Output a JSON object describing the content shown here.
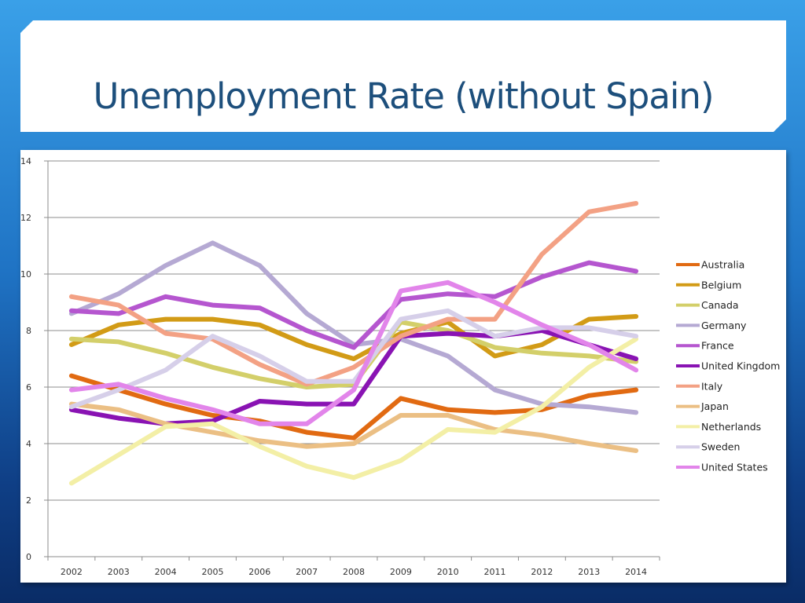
{
  "slide": {
    "title": "Unemployment Rate (without Spain)"
  },
  "chart_data": {
    "type": "line",
    "title": "Unemployment Rate (without Spain)",
    "xlabel": "",
    "ylabel": "",
    "x": [
      "2002",
      "2003",
      "2004",
      "2005",
      "2006",
      "2007",
      "2008",
      "2009",
      "2010",
      "2011",
      "2012",
      "2013",
      "2014"
    ],
    "ylim": [
      0,
      14
    ],
    "yticks": [
      0,
      2,
      4,
      6,
      8,
      10,
      12,
      14
    ],
    "grid": true,
    "legend_position": "right",
    "series": [
      {
        "name": "Australia",
        "color": "#e16a12",
        "values": [
          6.4,
          5.9,
          5.4,
          5.0,
          4.8,
          4.4,
          4.2,
          5.6,
          5.2,
          5.1,
          5.2,
          5.7,
          5.9
        ]
      },
      {
        "name": "Belgium",
        "color": "#d29b16",
        "values": [
          7.5,
          8.2,
          8.4,
          8.4,
          8.2,
          7.5,
          7.0,
          7.9,
          8.3,
          7.1,
          7.5,
          8.4,
          8.5
        ]
      },
      {
        "name": "Canada",
        "color": "#d3cf6a",
        "values": [
          7.7,
          7.6,
          7.2,
          6.7,
          6.3,
          6.0,
          6.1,
          8.3,
          8.0,
          7.4,
          7.2,
          7.1,
          6.9
        ]
      },
      {
        "name": "Germany",
        "color": "#b5a9d3",
        "values": [
          8.6,
          9.3,
          10.3,
          11.1,
          10.3,
          8.6,
          7.5,
          7.7,
          7.1,
          5.9,
          5.4,
          5.3,
          5.1
        ]
      },
      {
        "name": "France",
        "color": "#b556cf",
        "values": [
          8.7,
          8.6,
          9.2,
          8.9,
          8.8,
          8.0,
          7.4,
          9.1,
          9.3,
          9.2,
          9.9,
          10.4,
          10.1
        ]
      },
      {
        "name": "United Kingdom",
        "color": "#8913b3",
        "values": [
          5.2,
          4.9,
          4.7,
          4.8,
          5.5,
          5.4,
          5.4,
          7.8,
          7.9,
          7.8,
          8.0,
          7.5,
          7.0
        ]
      },
      {
        "name": "Italy",
        "color": "#f3a184",
        "values": [
          9.2,
          8.9,
          7.9,
          7.7,
          6.8,
          6.1,
          6.7,
          7.8,
          8.4,
          8.4,
          10.7,
          12.2,
          12.5
        ]
      },
      {
        "name": "Japan",
        "color": "#ebbf84",
        "values": [
          5.4,
          5.2,
          4.7,
          4.4,
          4.1,
          3.9,
          4.0,
          5.0,
          5.0,
          4.5,
          4.3,
          4.0,
          3.75
        ]
      },
      {
        "name": "Netherlands",
        "color": "#f3efa6",
        "values": [
          2.6,
          3.6,
          4.6,
          4.7,
          3.9,
          3.2,
          2.8,
          3.4,
          4.5,
          4.4,
          5.3,
          6.7,
          7.7
        ]
      },
      {
        "name": "Sweden",
        "color": "#d6cfe9",
        "values": [
          5.3,
          5.9,
          6.6,
          7.8,
          7.1,
          6.2,
          6.2,
          8.4,
          8.7,
          7.8,
          8.1,
          8.1,
          7.8
        ]
      },
      {
        "name": "United States",
        "color": "#e285ea",
        "values": [
          5.9,
          6.1,
          5.6,
          5.2,
          4.7,
          4.7,
          5.9,
          9.4,
          9.7,
          9.0,
          8.2,
          7.5,
          6.6
        ]
      }
    ]
  }
}
